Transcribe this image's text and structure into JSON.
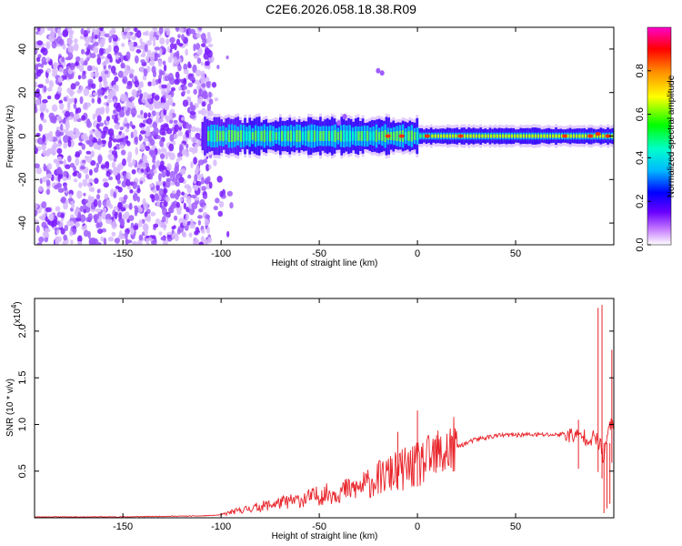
{
  "title": "C2E6.2026.058.18.38.R09",
  "chart_data": [
    {
      "type": "heatmap",
      "title": "C2E6.2026.058.18.38.R09",
      "xlabel": "Height of straight line (km)",
      "ylabel": "Frequency (Hz)",
      "xlim": [
        -195,
        100
      ],
      "ylim": [
        -50,
        50
      ],
      "xticks": [
        -150,
        -100,
        -50,
        0,
        50
      ],
      "yticks": [
        -40,
        -20,
        0,
        20,
        40
      ],
      "colorbar": {
        "label": "Normalized spectral amplitude",
        "range": [
          0.0,
          1.0
        ],
        "ticks": [
          "0.0",
          "0.2",
          "0.4",
          "0.6",
          "0.8"
        ],
        "colors": [
          "#ffffff",
          "#c77dff",
          "#6a00ff",
          "#0000ff",
          "#00b7ff",
          "#00ffcc",
          "#00ff00",
          "#ffff00",
          "#ff8800",
          "#ff0000",
          "#ff00cc"
        ]
      },
      "features": [
        {
          "name": "scattered low-amplitude noise",
          "x_range": [
            -195,
            -105
          ],
          "y_range": [
            -50,
            50
          ],
          "amplitude": 0.15
        },
        {
          "name": "signal band",
          "x_range": [
            -110,
            100
          ],
          "center_hz": 0,
          "amplitude_rising_to": 0.95
        }
      ],
      "grid": false
    },
    {
      "type": "line",
      "xlabel": "Height of straight line (km)",
      "ylabel": "SNR (10 * v/v)",
      "y_scale_note": "(x10^4)",
      "xlim": [
        -195,
        100
      ],
      "ylim": [
        0,
        2.35
      ],
      "xticks": [
        -150,
        -100,
        -50,
        0,
        50
      ],
      "yticks": [
        0.5,
        1.0,
        1.5,
        2.0
      ],
      "color": "#e8242a",
      "series": [
        {
          "x": [
            -195,
            -150,
            -110,
            -100,
            -95,
            -90,
            -80,
            -70,
            -60,
            -50,
            -40,
            -30,
            -20,
            -10,
            0,
            10,
            20,
            30,
            40,
            50,
            60,
            70,
            75,
            80,
            85,
            90,
            93,
            95,
            97,
            100
          ],
          "y": [
            0.01,
            0.01,
            0.02,
            0.03,
            0.06,
            0.08,
            0.12,
            0.16,
            0.19,
            0.24,
            0.28,
            0.32,
            0.42,
            0.5,
            0.56,
            0.66,
            0.76,
            0.84,
            0.88,
            0.89,
            0.89,
            0.89,
            0.9,
            0.88,
            0.87,
            0.85,
            0.8,
            0.6,
            0.95,
            1.0
          ],
          "spikes": [
            {
              "x": -10,
              "y": 0.92
            },
            {
              "x": 0,
              "y": 1.15
            },
            {
              "x": 82,
              "y": 1.05
            },
            {
              "x": 92,
              "y": 2.25
            },
            {
              "x": 94,
              "y": 2.28
            },
            {
              "x": 99,
              "y": 1.8
            }
          ]
        }
      ],
      "grid": false
    }
  ]
}
